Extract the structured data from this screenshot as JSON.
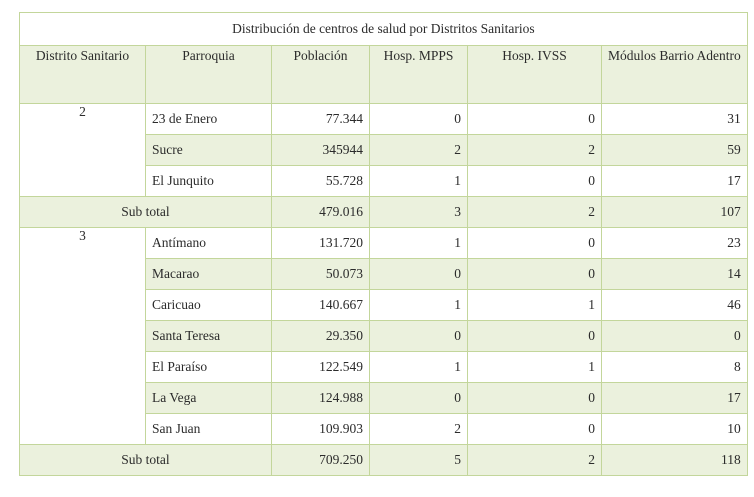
{
  "title": "Distribución de centros de salud por Distritos Sanitarios",
  "headers": {
    "distrito": "Distrito Sanitario",
    "parroquia": "Parroquia",
    "poblacion": "Población",
    "mpps": "Hosp. MPPS",
    "ivss": "Hosp. IVSS",
    "modulos": "Módulos Barrio Adentro"
  },
  "groups": [
    {
      "distrito": "2",
      "rows": [
        {
          "parroquia": "23 de Enero",
          "poblacion": "77.344",
          "mpps": "0",
          "ivss": "0",
          "modulos": "31"
        },
        {
          "parroquia": "Sucre",
          "poblacion": "345944",
          "mpps": "2",
          "ivss": "2",
          "modulos": "59"
        },
        {
          "parroquia": "El Junquito",
          "poblacion": "55.728",
          "mpps": "1",
          "ivss": "0",
          "modulos": "17"
        }
      ],
      "subtotal": {
        "label": "Sub total",
        "poblacion": "479.016",
        "mpps": "3",
        "ivss": "2",
        "modulos": "107"
      }
    },
    {
      "distrito": "3",
      "rows": [
        {
          "parroquia": "Antímano",
          "poblacion": "131.720",
          "mpps": "1",
          "ivss": "0",
          "modulos": "23"
        },
        {
          "parroquia": "Macarao",
          "poblacion": "50.073",
          "mpps": "0",
          "ivss": "0",
          "modulos": "14"
        },
        {
          "parroquia": "Caricuao",
          "poblacion": "140.667",
          "mpps": "1",
          "ivss": "1",
          "modulos": "46"
        },
        {
          "parroquia": "Santa Teresa",
          "poblacion": "29.350",
          "mpps": "0",
          "ivss": "0",
          "modulos": "0"
        },
        {
          "parroquia": "El Paraíso",
          "poblacion": "122.549",
          "mpps": "1",
          "ivss": "1",
          "modulos": "8"
        },
        {
          "parroquia": "La Vega",
          "poblacion": "124.988",
          "mpps": "0",
          "ivss": "0",
          "modulos": "17"
        },
        {
          "parroquia": "San Juan",
          "poblacion": "109.903",
          "mpps": "2",
          "ivss": "0",
          "modulos": "10"
        }
      ],
      "subtotal": {
        "label": "Sub total",
        "poblacion": "709.250",
        "mpps": "5",
        "ivss": "2",
        "modulos": "118"
      }
    }
  ]
}
